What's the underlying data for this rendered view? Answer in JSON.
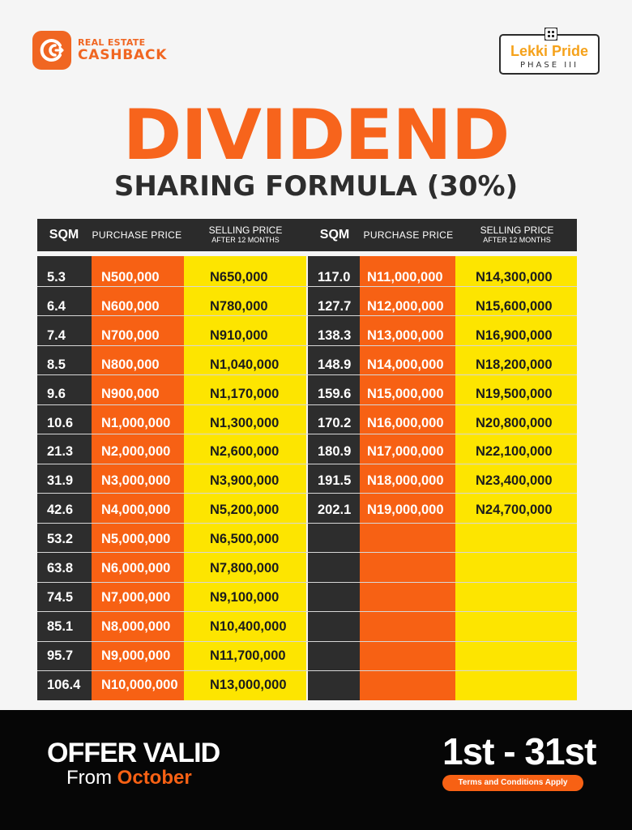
{
  "brand": {
    "line1": "REAL ESTATE",
    "line2": "CASHBACK",
    "color": "#f06622",
    "icon": "cashback-refresh-icon"
  },
  "partner": {
    "name": "Lekki Pride",
    "phase": "PHASE III",
    "icon": "house-icon"
  },
  "title": "DIVIDEND",
  "subtitle": "SHARING FORMULA (30%)",
  "table": {
    "headers": {
      "sqm": "SQM",
      "purchase": "PURCHASE PRICE",
      "selling_line1": "SELLING PRICE",
      "selling_line2": "AFTER 12 MONTHS"
    },
    "left_rows": [
      {
        "sqm": "5.3",
        "purchase": "N500,000",
        "selling": "N650,000"
      },
      {
        "sqm": "6.4",
        "purchase": "N600,000",
        "selling": "N780,000"
      },
      {
        "sqm": "7.4",
        "purchase": "N700,000",
        "selling": "N910,000"
      },
      {
        "sqm": "8.5",
        "purchase": "N800,000",
        "selling": "N1,040,000"
      },
      {
        "sqm": "9.6",
        "purchase": "N900,000",
        "selling": "N1,170,000"
      },
      {
        "sqm": "10.6",
        "purchase": "N1,000,000",
        "selling": "N1,300,000"
      },
      {
        "sqm": "21.3",
        "purchase": "N2,000,000",
        "selling": "N2,600,000"
      },
      {
        "sqm": "31.9",
        "purchase": "N3,000,000",
        "selling": "N3,900,000"
      },
      {
        "sqm": "42.6",
        "purchase": "N4,000,000",
        "selling": "N5,200,000"
      },
      {
        "sqm": "53.2",
        "purchase": "N5,000,000",
        "selling": "N6,500,000"
      },
      {
        "sqm": "63.8",
        "purchase": "N6,000,000",
        "selling": "N7,800,000"
      },
      {
        "sqm": "74.5",
        "purchase": "N7,000,000",
        "selling": "N9,100,000"
      },
      {
        "sqm": "85.1",
        "purchase": "N8,000,000",
        "selling": "N10,400,000"
      },
      {
        "sqm": "95.7",
        "purchase": "N9,000,000",
        "selling": "N11,700,000"
      },
      {
        "sqm": "106.4",
        "purchase": "N10,000,000",
        "selling": "N13,000,000"
      }
    ],
    "right_rows": [
      {
        "sqm": "117.0",
        "purchase": "N11,000,000",
        "selling": "N14,300,000"
      },
      {
        "sqm": "127.7",
        "purchase": "N12,000,000",
        "selling": "N15,600,000"
      },
      {
        "sqm": "138.3",
        "purchase": "N13,000,000",
        "selling": "N16,900,000"
      },
      {
        "sqm": "148.9",
        "purchase": "N14,000,000",
        "selling": "N18,200,000"
      },
      {
        "sqm": "159.6",
        "purchase": "N15,000,000",
        "selling": "N19,500,000"
      },
      {
        "sqm": "170.2",
        "purchase": "N16,000,000",
        "selling": "N20,800,000"
      },
      {
        "sqm": "180.9",
        "purchase": "N17,000,000",
        "selling": "N22,100,000"
      },
      {
        "sqm": "191.5",
        "purchase": "N18,000,000",
        "selling": "N23,400,000"
      },
      {
        "sqm": "202.1",
        "purchase": "N19,000,000",
        "selling": "N24,700,000"
      }
    ],
    "colors": {
      "sqm": "#2d2d2d",
      "purchase": "#f76114",
      "selling": "#fde500"
    }
  },
  "footer": {
    "offer_line1": "OFFER VALID",
    "offer_from": "From",
    "offer_month": "October",
    "dates": "1st - 31st",
    "terms": "Terms and Conditions Apply"
  }
}
